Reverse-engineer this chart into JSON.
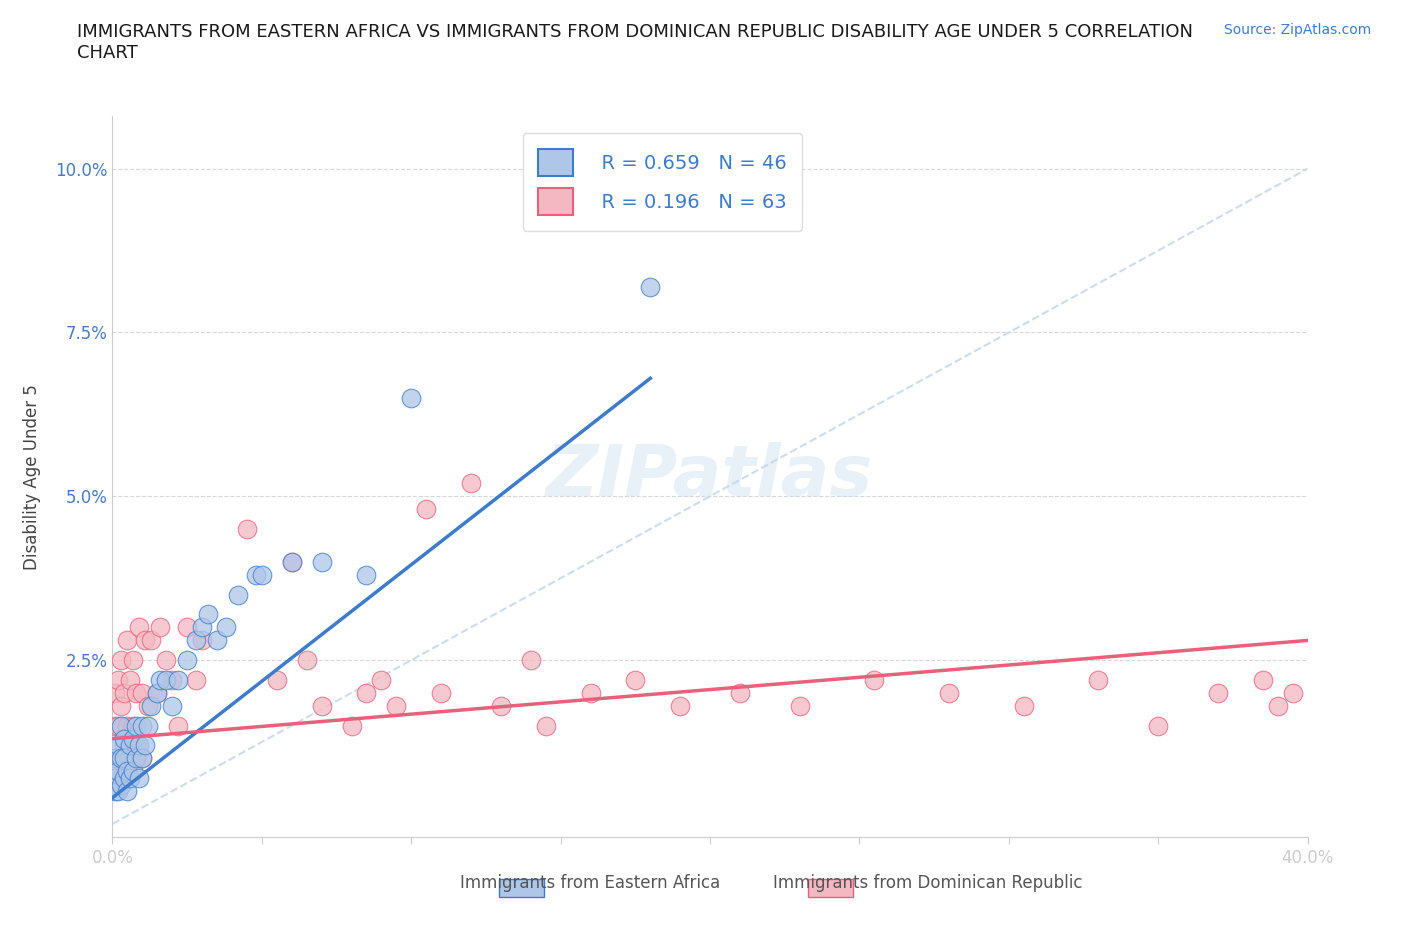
{
  "title": "IMMIGRANTS FROM EASTERN AFRICA VS IMMIGRANTS FROM DOMINICAN REPUBLIC DISABILITY AGE UNDER 5 CORRELATION\nCHART",
  "source": "Source: ZipAtlas.com",
  "xlabel": "",
  "ylabel": "Disability Age Under 5",
  "xlim": [
    0.0,
    0.4
  ],
  "ylim": [
    -0.002,
    0.108
  ],
  "x_ticks": [
    0.0,
    0.4
  ],
  "x_tick_labels": [
    "0.0%",
    "40.0%"
  ],
  "y_ticks": [
    0.0,
    0.025,
    0.05,
    0.075,
    0.1
  ],
  "y_tick_labels": [
    "",
    "2.5%",
    "5.0%",
    "7.5%",
    "10.0%"
  ],
  "blue_color": "#aec6e8",
  "pink_color": "#f4b8c2",
  "blue_line_color": "#3d7cc9",
  "pink_line_color": "#e8607a",
  "diag_line_color": "#c0d4e8",
  "grid_color": "#d8d8d8",
  "background": "#ffffff",
  "watermark": "ZIPatlas",
  "legend_R_blue": "R = 0.659",
  "legend_N_blue": "N = 46",
  "legend_R_pink": "R = 0.196",
  "legend_N_pink": "N = 63",
  "blue_trend_x": [
    0.0,
    0.18
  ],
  "blue_trend_y": [
    0.004,
    0.068
  ],
  "pink_trend_x": [
    0.0,
    0.4
  ],
  "pink_trend_y": [
    0.013,
    0.028
  ],
  "blue_scatter_x": [
    0.001,
    0.001,
    0.001,
    0.002,
    0.002,
    0.002,
    0.003,
    0.003,
    0.003,
    0.004,
    0.004,
    0.004,
    0.005,
    0.005,
    0.006,
    0.006,
    0.007,
    0.007,
    0.008,
    0.008,
    0.009,
    0.009,
    0.01,
    0.01,
    0.011,
    0.012,
    0.013,
    0.015,
    0.016,
    0.018,
    0.02,
    0.022,
    0.025,
    0.028,
    0.03,
    0.032,
    0.035,
    0.038,
    0.042,
    0.048,
    0.05,
    0.06,
    0.07,
    0.085,
    0.1,
    0.18
  ],
  "blue_scatter_y": [
    0.005,
    0.007,
    0.01,
    0.005,
    0.008,
    0.012,
    0.006,
    0.01,
    0.015,
    0.007,
    0.01,
    0.013,
    0.005,
    0.008,
    0.007,
    0.012,
    0.008,
    0.013,
    0.01,
    0.015,
    0.007,
    0.012,
    0.01,
    0.015,
    0.012,
    0.015,
    0.018,
    0.02,
    0.022,
    0.022,
    0.018,
    0.022,
    0.025,
    0.028,
    0.03,
    0.032,
    0.028,
    0.03,
    0.035,
    0.038,
    0.038,
    0.04,
    0.04,
    0.038,
    0.065,
    0.082
  ],
  "pink_scatter_x": [
    0.001,
    0.001,
    0.001,
    0.002,
    0.002,
    0.002,
    0.003,
    0.003,
    0.003,
    0.004,
    0.004,
    0.005,
    0.005,
    0.005,
    0.006,
    0.006,
    0.007,
    0.007,
    0.008,
    0.008,
    0.009,
    0.01,
    0.01,
    0.011,
    0.012,
    0.013,
    0.015,
    0.016,
    0.018,
    0.02,
    0.022,
    0.025,
    0.028,
    0.03,
    0.06,
    0.065,
    0.08,
    0.085,
    0.095,
    0.11,
    0.13,
    0.145,
    0.16,
    0.175,
    0.19,
    0.21,
    0.23,
    0.255,
    0.28,
    0.305,
    0.33,
    0.35,
    0.37,
    0.385,
    0.39,
    0.395,
    0.045,
    0.055,
    0.07,
    0.09,
    0.105,
    0.12,
    0.14
  ],
  "pink_scatter_y": [
    0.01,
    0.015,
    0.02,
    0.008,
    0.015,
    0.022,
    0.01,
    0.018,
    0.025,
    0.012,
    0.02,
    0.008,
    0.015,
    0.028,
    0.01,
    0.022,
    0.015,
    0.025,
    0.012,
    0.02,
    0.03,
    0.01,
    0.02,
    0.028,
    0.018,
    0.028,
    0.02,
    0.03,
    0.025,
    0.022,
    0.015,
    0.03,
    0.022,
    0.028,
    0.04,
    0.025,
    0.015,
    0.02,
    0.018,
    0.02,
    0.018,
    0.015,
    0.02,
    0.022,
    0.018,
    0.02,
    0.018,
    0.022,
    0.02,
    0.018,
    0.022,
    0.015,
    0.02,
    0.022,
    0.018,
    0.02,
    0.045,
    0.022,
    0.018,
    0.022,
    0.048,
    0.052,
    0.025
  ]
}
